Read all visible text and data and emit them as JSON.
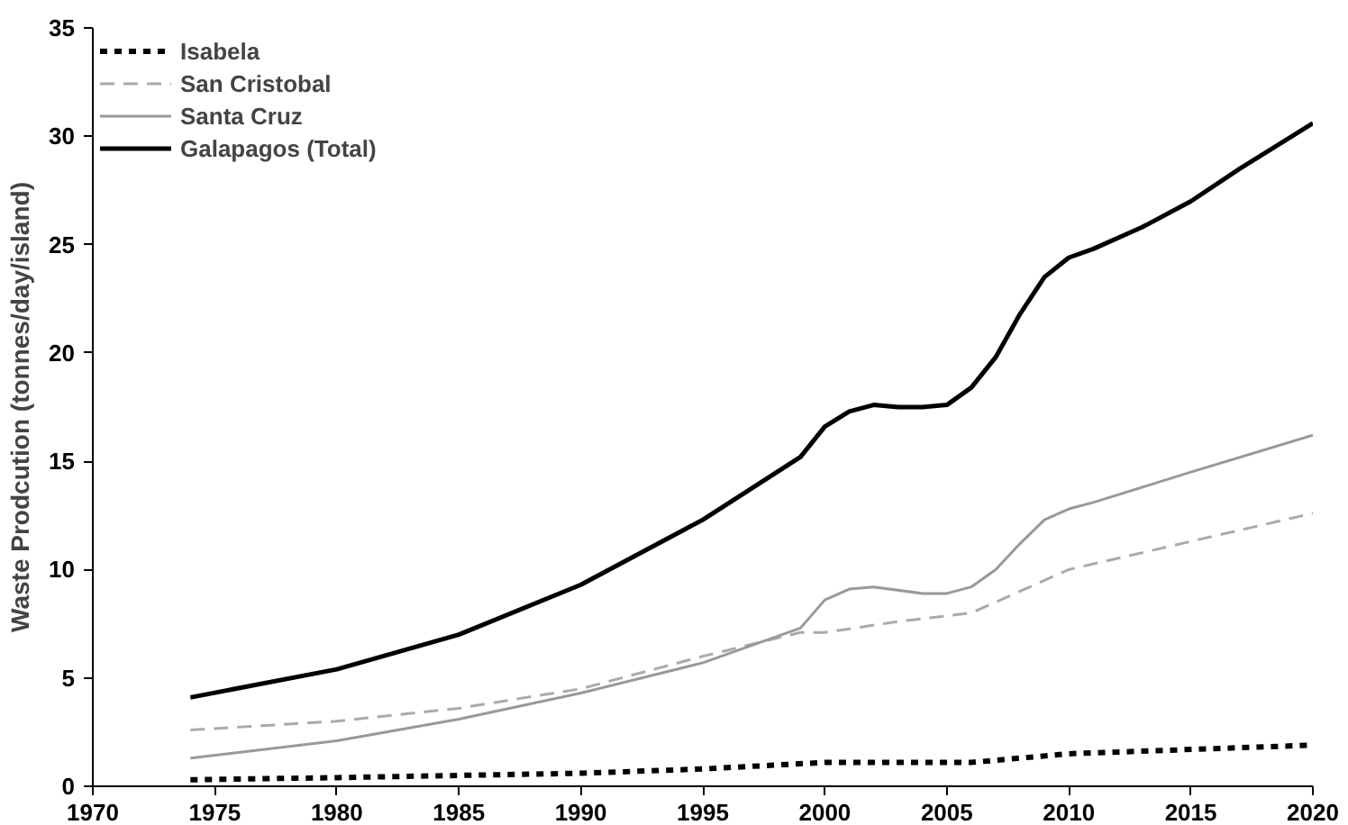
{
  "chart_data": {
    "type": "line",
    "ylabel": "Waste Prodcution (tonnes/day/island)",
    "xlim": [
      1970,
      2020
    ],
    "xticks": [
      1970,
      1975,
      1980,
      1985,
      1990,
      1995,
      2000,
      2005,
      2010,
      2015,
      2020
    ],
    "ylim": [
      0,
      35
    ],
    "yticks": [
      0,
      5,
      10,
      15,
      20,
      25,
      30,
      35
    ],
    "grid": false,
    "legend": "top left",
    "marker": "none",
    "series": [
      {
        "name": "Isabela",
        "color": "#000000",
        "line_style": "dotted",
        "x": [
          1974,
          1980,
          1985,
          1990,
          1995,
          2000,
          2006,
          2010,
          2015,
          2020
        ],
        "values": [
          0.3,
          0.4,
          0.5,
          0.6,
          0.8,
          1.1,
          1.1,
          1.5,
          1.7,
          1.9
        ]
      },
      {
        "name": "San Cristobal",
        "color": "#aaaaaa",
        "line_style": "dashed",
        "x": [
          1974,
          1980,
          1985,
          1990,
          1995,
          1999,
          2000,
          2003,
          2006,
          2008,
          2010,
          2015,
          2020
        ],
        "values": [
          2.6,
          3.0,
          3.6,
          4.5,
          6.0,
          7.1,
          7.1,
          7.6,
          8.0,
          9.0,
          10.0,
          11.3,
          12.6
        ]
      },
      {
        "name": "Santa Cruz",
        "color": "#999999",
        "line_style": "solid",
        "x": [
          1974,
          1980,
          1985,
          1990,
          1995,
          1999,
          2000,
          2001,
          2002,
          2004,
          2005,
          2006,
          2007,
          2008,
          2009,
          2010,
          2011,
          2015,
          2020
        ],
        "values": [
          1.3,
          2.1,
          3.1,
          4.3,
          5.7,
          7.3,
          8.6,
          9.1,
          9.2,
          8.9,
          8.9,
          9.2,
          10.0,
          11.2,
          12.3,
          12.8,
          13.1,
          14.5,
          16.2
        ]
      },
      {
        "name": "Galapagos (Total)",
        "color": "#000000",
        "line_style": "solid",
        "x": [
          1974,
          1980,
          1985,
          1990,
          1995,
          1999,
          2000,
          2001,
          2002,
          2003,
          2004,
          2005,
          2006,
          2007,
          2008,
          2009,
          2010,
          2011,
          2013,
          2015,
          2017,
          2020
        ],
        "values": [
          4.1,
          5.4,
          7.0,
          9.3,
          12.3,
          15.2,
          16.6,
          17.3,
          17.6,
          17.5,
          17.5,
          17.6,
          18.4,
          19.8,
          21.8,
          23.5,
          24.4,
          24.8,
          25.8,
          27.0,
          28.5,
          30.6
        ]
      }
    ]
  }
}
